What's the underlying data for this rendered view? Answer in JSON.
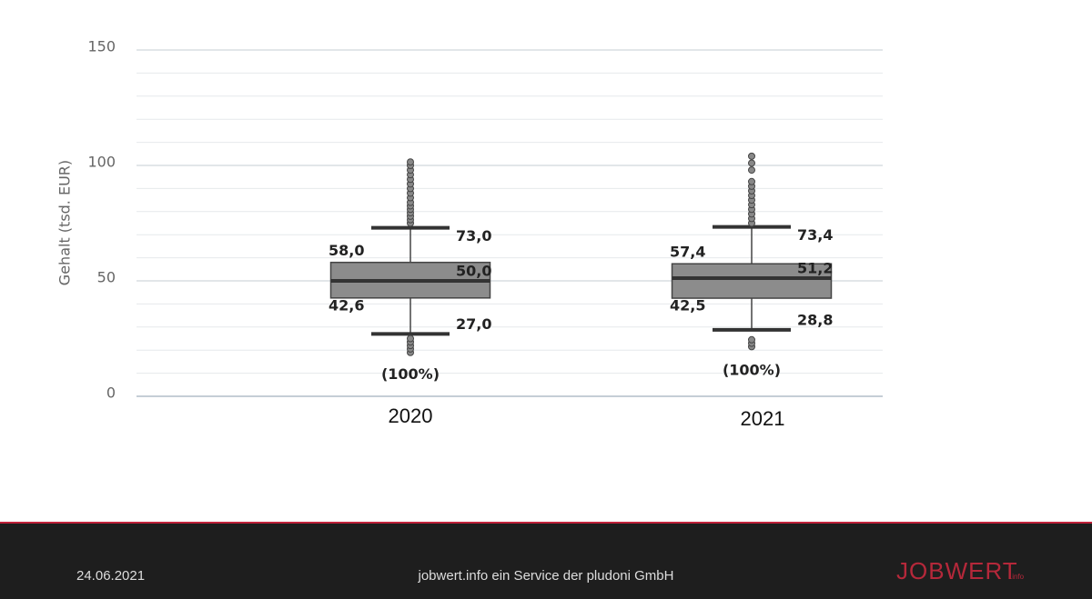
{
  "chart_data": {
    "type": "box",
    "y_label": "Gehalt (tsd. EUR)",
    "categories": [
      "2020",
      "2021"
    ],
    "ylim": [
      0,
      150
    ],
    "yticks": [
      0,
      50,
      100,
      150
    ],
    "minor_yticks": [
      10,
      20,
      30,
      40,
      60,
      70,
      80,
      90,
      110,
      120,
      130,
      140
    ],
    "grid": true,
    "box_color": "#8c8c8c",
    "boxes": [
      {
        "low": 27.0,
        "q1": 42.6,
        "median": 50.0,
        "q3": 58.0,
        "high": 73.0,
        "value_labels": {
          "low": "27,0",
          "q1": "42,6",
          "median": "50,0",
          "q3": "58,0",
          "high": "73,0"
        },
        "outliers": [
          19,
          20.5,
          22,
          23.5,
          25,
          75,
          76.5,
          78,
          79.5,
          81,
          82.5,
          84,
          86,
          88,
          90,
          92,
          94,
          96,
          98,
          100,
          101.5
        ],
        "note": "(100%)"
      },
      {
        "low": 28.8,
        "q1": 42.5,
        "median": 51.2,
        "q3": 57.4,
        "high": 73.4,
        "value_labels": {
          "low": "28,8",
          "q1": "42,5",
          "median": "51,2",
          "q3": "57,4",
          "high": "73,4"
        },
        "outliers": [
          21.5,
          23,
          24.5,
          75,
          77,
          79,
          81,
          83,
          85,
          87,
          89,
          91,
          93,
          98,
          101,
          104
        ],
        "note": "(100%)"
      }
    ]
  },
  "footer": {
    "date": "24.06.2021",
    "text": "jobwert.info ein Service der pludoni GmbH",
    "logo": "JOBWERT",
    "logo_suffix": ".info"
  }
}
